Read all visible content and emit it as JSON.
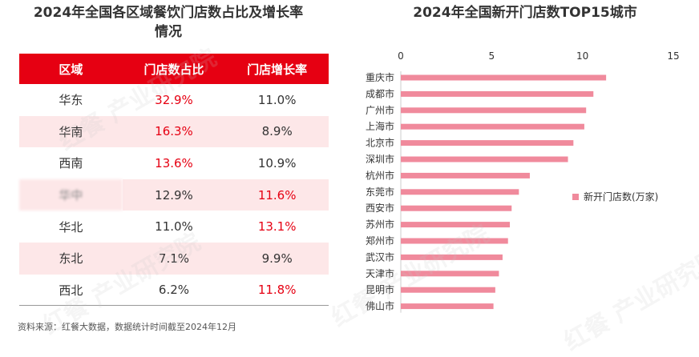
{
  "left_title_line1": "2024年全国各区域餐饮门店数占比及增长率",
  "left_title_line2": "情况",
  "right_title": "2024年全国新开门店数TOP15城市",
  "table": {
    "headers": [
      "区域",
      "门店数占比",
      "门店增长率"
    ],
    "rows": [
      {
        "region": "华东",
        "share": "32.9%",
        "growth": "11.0%"
      },
      {
        "region": "华南",
        "share": "16.3%",
        "growth": "8.9%"
      },
      {
        "region": "西南",
        "share": "13.6%",
        "growth": "10.9%"
      },
      {
        "region": "华中",
        "share": "12.9%",
        "growth": "11.6%"
      },
      {
        "region": "华北",
        "share": "11.0%",
        "growth": "13.1%"
      },
      {
        "region": "东北",
        "share": "7.1%",
        "growth": "9.9%"
      },
      {
        "region": "西北",
        "share": "6.2%",
        "growth": "11.8%"
      }
    ]
  },
  "source": "资料来源：红餐大数据，数据统计时间截至2024年12月",
  "watermark": "红餐 产业研究院",
  "colors": {
    "accent": "#e60012",
    "bar": "#f08a9c",
    "row_alt": "#fde7e8"
  },
  "chart_data": {
    "type": "bar",
    "orientation": "horizontal",
    "title": "2024年全国新开门店数TOP15城市",
    "categories": [
      "重庆市",
      "成都市",
      "广州市",
      "上海市",
      "北京市",
      "深圳市",
      "杭州市",
      "东莞市",
      "西安市",
      "苏州市",
      "郑州市",
      "武汉市",
      "天津市",
      "昆明市",
      "佛山市"
    ],
    "series": [
      {
        "name": "新开门店数(万家)",
        "values": [
          11.3,
          10.6,
          10.2,
          10.1,
          9.5,
          9.2,
          7.1,
          6.5,
          6.1,
          6.0,
          5.9,
          5.6,
          5.4,
          5.2,
          5.1
        ]
      }
    ],
    "xlim": [
      0,
      15
    ],
    "xticks": [
      0,
      5,
      10,
      15
    ],
    "xlabel": "",
    "ylabel": "",
    "legend": "right"
  }
}
